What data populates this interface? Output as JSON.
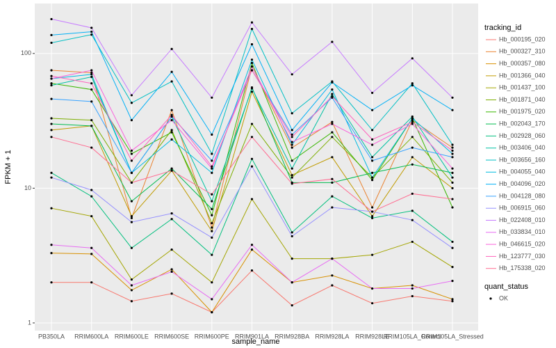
{
  "chart_data": {
    "type": "line",
    "x_label": "sample_name",
    "y_label": "FPKM + 1",
    "log_y": true,
    "grid": true,
    "categories": [
      "PB350LA",
      "RRIM600LA",
      "RRIM600LE",
      "RRIM600SE",
      "RRIM600PE",
      "RRIM901LA",
      "RRIM928BA",
      "RRIM928LA",
      "RRIM928LE",
      "RRIM105LA_Control",
      "RRIM105LA_Stressed"
    ],
    "ylim": [
      0.877,
      235
    ],
    "yticks": [
      1,
      10,
      100
    ],
    "legend_title": "tracking_id",
    "legend_position": "right",
    "point_legend": {
      "title": "quant_status",
      "labels": [
        "OK"
      ],
      "color": "#000000"
    },
    "series": [
      {
        "name": "Hb_000195_020",
        "color": "#F8766D",
        "values": [
          2.0,
          2.0,
          1.45,
          1.65,
          1.2,
          2.45,
          1.35,
          1.9,
          1.4,
          1.58,
          1.45
        ]
      },
      {
        "name": "Hb_000327_310",
        "color": "#EA8331",
        "values": [
          75,
          72,
          6,
          38,
          5.1,
          80,
          20,
          31,
          7.2,
          32,
          20
        ]
      },
      {
        "name": "Hb_000357_080",
        "color": "#D89000",
        "values": [
          3.3,
          3.25,
          1.75,
          2.5,
          1.2,
          3.5,
          2.0,
          2.25,
          1.8,
          1.9,
          1.5
        ]
      },
      {
        "name": "Hb_001366_040",
        "color": "#C09B00",
        "values": [
          27,
          29,
          6.2,
          13.5,
          4.8,
          52,
          12.5,
          17,
          6.2,
          17,
          10
        ]
      },
      {
        "name": "Hb_001437_100",
        "color": "#A3A500",
        "values": [
          7.1,
          6.2,
          2.1,
          3.5,
          2.0,
          8.3,
          3.0,
          3.0,
          3.2,
          4.0,
          2.6
        ]
      },
      {
        "name": "Hb_001871_040",
        "color": "#7CAE00",
        "values": [
          33,
          32,
          11,
          27,
          5.5,
          30,
          12,
          24,
          12,
          24,
          11
        ]
      },
      {
        "name": "Hb_001975_020",
        "color": "#39B600",
        "values": [
          60,
          54,
          18,
          26,
          6.3,
          85,
          16,
          26,
          11.5,
          33,
          7.2
        ]
      },
      {
        "name": "Hb_002043_170",
        "color": "#00BB4E",
        "values": [
          30,
          29,
          8,
          14,
          7.0,
          56,
          11,
          11,
          13,
          15,
          13
        ]
      },
      {
        "name": "Hb_002928_060",
        "color": "#00BF7D",
        "values": [
          13,
          8.7,
          3.6,
          5.9,
          3.2,
          16.5,
          4.7,
          8.7,
          6,
          6.8,
          4
        ]
      },
      {
        "name": "Hb_003406_040",
        "color": "#00C1A3",
        "values": [
          58,
          67,
          13,
          34,
          8,
          55,
          14,
          50,
          17,
          34,
          12
        ]
      },
      {
        "name": "Hb_003656_160",
        "color": "#00BFC4",
        "values": [
          120,
          138,
          43,
          62,
          18,
          152,
          36,
          62,
          27,
          60,
          21
        ]
      },
      {
        "name": "Hb_004055_040",
        "color": "#00BAE0",
        "values": [
          65,
          70,
          13,
          23,
          13,
          90,
          21,
          54,
          12,
          33,
          18
        ]
      },
      {
        "name": "Hb_004096_020",
        "color": "#00B0F6",
        "values": [
          137,
          145,
          32,
          73,
          25,
          117,
          27,
          61,
          38,
          58,
          38
        ]
      },
      {
        "name": "Hb_004128_080",
        "color": "#35A2FF",
        "values": [
          46,
          44,
          13,
          34,
          16,
          75,
          25,
          47,
          16,
          20,
          17
        ]
      },
      {
        "name": "Hb_006915_060",
        "color": "#9590FF",
        "values": [
          12,
          9.7,
          5.6,
          6.5,
          4.3,
          14.5,
          4.4,
          7.2,
          6.7,
          5.8,
          3.6
        ]
      },
      {
        "name": "Hb_022408_010",
        "color": "#C77CFF",
        "values": [
          180,
          155,
          49,
          108,
          47,
          170,
          70,
          122,
          51,
          92,
          47
        ]
      },
      {
        "name": "Hb_033834_010",
        "color": "#E76BF3",
        "values": [
          3.8,
          3.6,
          1.9,
          2.4,
          1.5,
          3.8,
          2.0,
          3.0,
          1.8,
          1.8,
          2.05
        ]
      },
      {
        "name": "Hb_046615_020",
        "color": "#FA62DB",
        "values": [
          65,
          75,
          19,
          32,
          14,
          80,
          22,
          30,
          21,
          30,
          14
        ]
      },
      {
        "name": "Hb_123777_030",
        "color": "#FF62BC",
        "values": [
          68,
          60,
          16,
          35,
          14.5,
          75,
          24,
          48,
          23,
          31,
          19
        ]
      },
      {
        "name": "Hb_175338_020",
        "color": "#FF6C91",
        "values": [
          24,
          20,
          11,
          13.5,
          9,
          24,
          10.8,
          11.7,
          6.7,
          9.1,
          8.3
        ]
      }
    ]
  }
}
